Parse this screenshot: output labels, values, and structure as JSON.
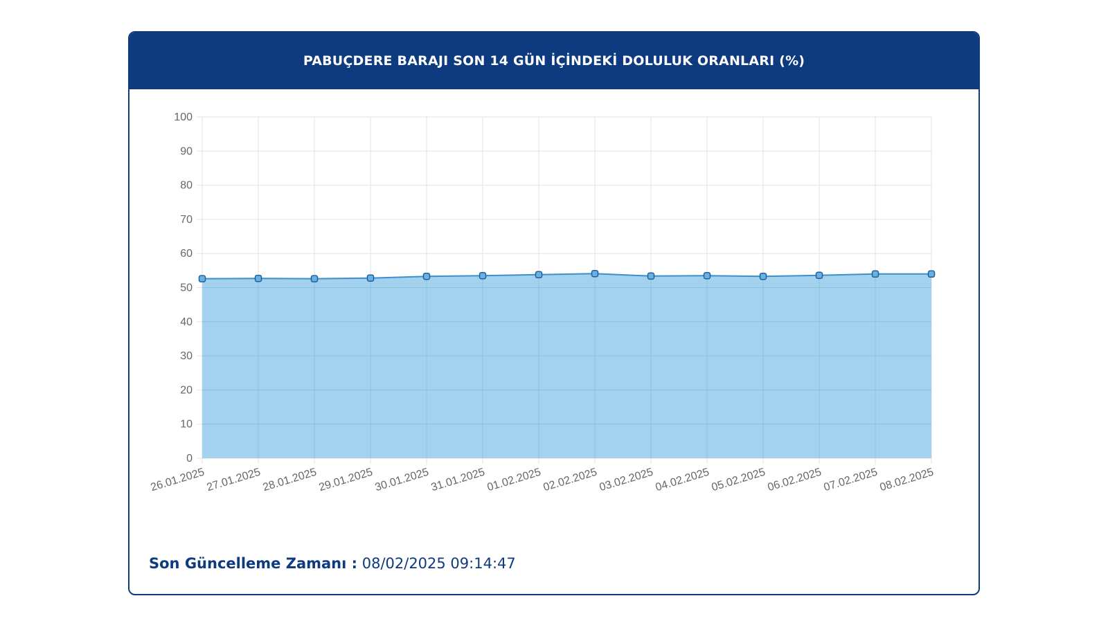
{
  "header": {
    "title": "PABUÇDERE BARAJI SON 14 GÜN İÇİNDEKİ DOLULUK ORANLARI (%)"
  },
  "footer": {
    "label": "Son Güncelleme Zamanı :",
    "value": "08/02/2025 09:14:47"
  },
  "colors": {
    "header_bg": "#0e3a80",
    "line": "#3d8fcc",
    "fill": "#9dd0ec",
    "point_fill": "#6ab0e0",
    "point_stroke": "#1f5f9e",
    "grid": "#e2e2e2",
    "tick_text": "#666666"
  },
  "chart_data": {
    "type": "area",
    "title": "",
    "xlabel": "",
    "ylabel": "",
    "x": [
      "26.01.2025",
      "27.01.2025",
      "28.01.2025",
      "29.01.2025",
      "30.01.2025",
      "31.01.2025",
      "01.02.2025",
      "02.02.2025",
      "03.02.2025",
      "04.02.2025",
      "05.02.2025",
      "06.02.2025",
      "07.02.2025",
      "08.02.2025"
    ],
    "series": [
      {
        "values": [
          52.6,
          52.7,
          52.6,
          52.8,
          53.3,
          53.5,
          53.8,
          54.1,
          53.4,
          53.5,
          53.3,
          53.6,
          54.0,
          54.0
        ]
      }
    ],
    "ylim": [
      0,
      100
    ],
    "yticks": [
      0,
      10,
      20,
      30,
      40,
      50,
      60,
      70,
      80,
      90,
      100
    ],
    "grid": true,
    "legend": "none"
  }
}
